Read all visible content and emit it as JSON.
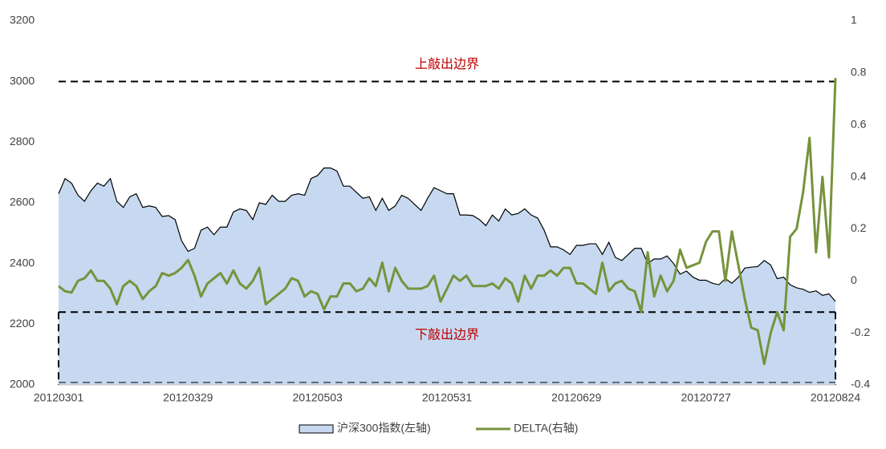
{
  "chart_data": {
    "type": "area-line",
    "categories": [
      "20120301",
      null,
      null,
      null,
      null,
      null,
      null,
      null,
      null,
      null,
      null,
      null,
      null,
      null,
      null,
      null,
      null,
      null,
      null,
      null,
      "20120329",
      null,
      null,
      null,
      null,
      null,
      null,
      null,
      null,
      null,
      null,
      null,
      null,
      null,
      null,
      null,
      null,
      null,
      null,
      null,
      "20120503",
      null,
      null,
      null,
      null,
      null,
      null,
      null,
      null,
      null,
      null,
      null,
      null,
      null,
      null,
      null,
      null,
      null,
      null,
      null,
      "20120531",
      null,
      null,
      null,
      null,
      null,
      null,
      null,
      null,
      null,
      null,
      null,
      null,
      null,
      null,
      null,
      null,
      null,
      null,
      null,
      "20120629",
      null,
      null,
      null,
      null,
      null,
      null,
      null,
      null,
      null,
      null,
      null,
      null,
      null,
      null,
      null,
      null,
      null,
      null,
      null,
      "20120727",
      null,
      null,
      null,
      null,
      null,
      null,
      null,
      null,
      null,
      null,
      null,
      null,
      null,
      null,
      null,
      null,
      null,
      null,
      null,
      "20120824"
    ],
    "series": [
      {
        "name": "沪深300指数(左轴)",
        "color": "#c6d9f0",
        "line_color": "#000000",
        "axis": "y",
        "values": [
          2630,
          2680,
          2665,
          2625,
          2605,
          2640,
          2665,
          2655,
          2680,
          2605,
          2585,
          2620,
          2630,
          2585,
          2590,
          2585,
          2555,
          2558,
          2545,
          2475,
          2440,
          2450,
          2510,
          2520,
          2495,
          2520,
          2520,
          2570,
          2580,
          2575,
          2545,
          2600,
          2595,
          2625,
          2605,
          2605,
          2625,
          2630,
          2625,
          2680,
          2690,
          2715,
          2715,
          2705,
          2655,
          2655,
          2635,
          2615,
          2620,
          2575,
          2615,
          2575,
          2590,
          2625,
          2615,
          2595,
          2575,
          2615,
          2650,
          2640,
          2630,
          2630,
          2560,
          2560,
          2558,
          2545,
          2525,
          2560,
          2540,
          2580,
          2560,
          2565,
          2580,
          2560,
          2550,
          2510,
          2455,
          2455,
          2445,
          2430,
          2460,
          2460,
          2465,
          2465,
          2430,
          2470,
          2420,
          2410,
          2430,
          2450,
          2450,
          2400,
          2415,
          2415,
          2425,
          2400,
          2365,
          2375,
          2355,
          2345,
          2345,
          2335,
          2330,
          2350,
          2335,
          2355,
          2385,
          2388,
          2390,
          2410,
          2395,
          2350,
          2355,
          2330,
          2320,
          2315,
          2305,
          2310,
          2295,
          2300,
          2275
        ]
      },
      {
        "name": "DELTA(右轴)",
        "color": "#77933c",
        "axis": "y2",
        "values": [
          -0.02,
          -0.04,
          -0.045,
          0.0,
          0.01,
          0.04,
          0.0,
          0.0,
          -0.03,
          -0.09,
          -0.02,
          0.0,
          -0.02,
          -0.07,
          -0.04,
          -0.02,
          0.03,
          0.02,
          0.03,
          0.05,
          0.08,
          0.02,
          -0.06,
          -0.01,
          0.01,
          0.03,
          -0.01,
          0.04,
          -0.01,
          -0.03,
          0.0,
          0.05,
          -0.09,
          -0.07,
          -0.05,
          -0.03,
          0.01,
          0.0,
          -0.06,
          -0.04,
          -0.05,
          -0.11,
          -0.06,
          -0.06,
          -0.01,
          -0.01,
          -0.04,
          -0.03,
          0.01,
          -0.02,
          0.07,
          -0.04,
          0.05,
          0.0,
          -0.03,
          -0.03,
          -0.03,
          -0.02,
          0.02,
          -0.08,
          -0.03,
          0.02,
          0.0,
          0.02,
          -0.02,
          -0.02,
          -0.02,
          -0.01,
          -0.03,
          0.01,
          -0.01,
          -0.08,
          0.02,
          -0.03,
          0.02,
          0.02,
          0.04,
          0.02,
          0.05,
          0.05,
          -0.01,
          -0.01,
          -0.03,
          -0.05,
          0.07,
          -0.04,
          -0.01,
          0.0,
          -0.03,
          -0.04,
          -0.12,
          0.11,
          -0.06,
          0.02,
          -0.04,
          0.0,
          0.12,
          0.05,
          0.06,
          0.07,
          0.15,
          0.19,
          0.19,
          0.0,
          0.19,
          0.06,
          -0.07,
          -0.18,
          -0.19,
          -0.32,
          -0.2,
          -0.12,
          -0.19,
          0.17,
          0.2,
          0.34,
          0.55,
          0.11,
          0.4,
          0.09,
          0.78
        ]
      }
    ],
    "ylim": [
      2000,
      3200
    ],
    "yticks": [
      2000,
      2200,
      2400,
      2600,
      2800,
      3000,
      3200
    ],
    "y2lim": [
      -0.4,
      1
    ],
    "y2ticks": [
      -0.4,
      -0.2,
      0,
      0.2,
      0.4,
      0.6,
      0.8,
      1
    ],
    "annotations": [
      {
        "text": "上敲出边界",
        "value": 3000
      },
      {
        "text": "下敲出边界",
        "value": 2240
      }
    ],
    "legend": "bottom"
  }
}
